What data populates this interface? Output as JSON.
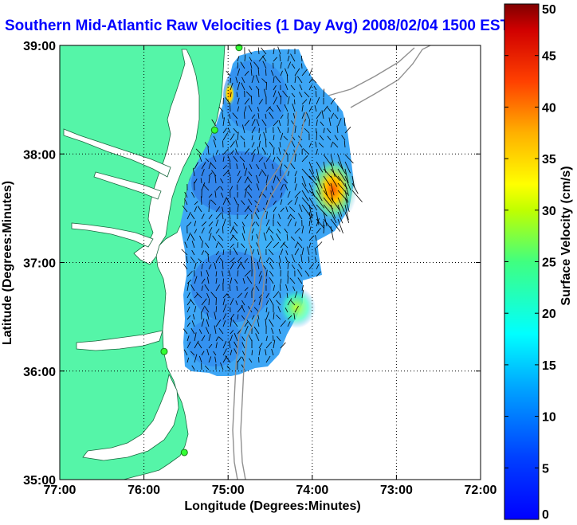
{
  "chart_data": {
    "type": "heatmap",
    "title": "Southern Mid-Atlantic Raw Velocities (1 Day Avg) 2008/02/04 1500 EST",
    "xlabel": "Longitude (Degrees:Minutes)",
    "ylabel": "Latitude (Degrees:Minutes)",
    "colorbar_label": "Surface Velocity (cm/s)",
    "xlim": [
      -77,
      -72
    ],
    "ylim": [
      35,
      39
    ],
    "x_ticks": [
      {
        "value": -77,
        "label": "77:00"
      },
      {
        "value": -76,
        "label": "76:00"
      },
      {
        "value": -75,
        "label": "75:00"
      },
      {
        "value": -74,
        "label": "74:00"
      },
      {
        "value": -73,
        "label": "73:00"
      },
      {
        "value": -72,
        "label": "72:00"
      }
    ],
    "y_ticks": [
      {
        "value": 35,
        "label": "35:00"
      },
      {
        "value": 36,
        "label": "36:00"
      },
      {
        "value": 37,
        "label": "37:00"
      },
      {
        "value": 38,
        "label": "38:00"
      },
      {
        "value": 39,
        "label": "39:00"
      }
    ],
    "colorbar": {
      "min": 0,
      "max": 50,
      "ticks": [
        "0",
        "5",
        "10",
        "15",
        "20",
        "25",
        "30",
        "35",
        "40",
        "45",
        "50"
      ],
      "colormap": "jet"
    },
    "grid": true,
    "land_color": "#55f5a8",
    "velocity_field_note": "",
    "velocity_hotspots": [
      {
        "lon": -73.7,
        "lat": 37.5,
        "speed": 33
      },
      {
        "lon": -73.8,
        "lat": 37.75,
        "speed": 28
      },
      {
        "lon": -74.2,
        "lat": 36.8,
        "speed": 22
      },
      {
        "lon": -74.95,
        "lat": 38.55,
        "speed": 30
      }
    ],
    "stations": [
      {
        "lon": -74.87,
        "lat": 38.98
      },
      {
        "lon": -75.16,
        "lat": 38.22
      },
      {
        "lon": -75.76,
        "lat": 36.18
      },
      {
        "lon": -75.52,
        "lat": 35.25
      }
    ]
  }
}
